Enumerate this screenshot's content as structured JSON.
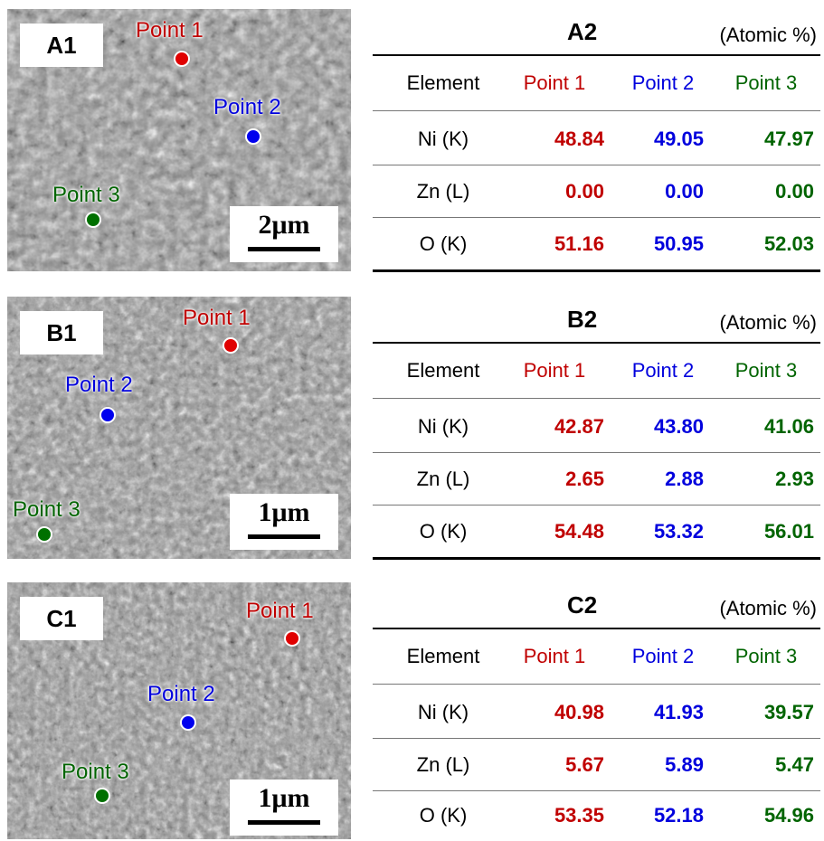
{
  "colors": {
    "point1": "#c00000",
    "point2": "#0000dd",
    "point3": "#006400"
  },
  "panels": [
    {
      "image_label": "A1",
      "scale": "2μm",
      "point_labels": [
        "Point 1",
        "Point 2",
        "Point 3"
      ],
      "table": {
        "title": "A2",
        "unit": "(Atomic %)",
        "headers": [
          "Element",
          "Point 1",
          "Point 2",
          "Point 3"
        ],
        "rows": [
          [
            "Ni (K)",
            "48.84",
            "49.05",
            "47.97"
          ],
          [
            "Zn (L)",
            "0.00",
            "0.00",
            "0.00"
          ],
          [
            "O (K)",
            "51.16",
            "50.95",
            "52.03"
          ]
        ]
      }
    },
    {
      "image_label": "B1",
      "scale": "1μm",
      "point_labels": [
        "Point 1",
        "Point 2",
        "Point 3"
      ],
      "table": {
        "title": "B2",
        "unit": "(Atomic %)",
        "headers": [
          "Element",
          "Point 1",
          "Point 2",
          "Point 3"
        ],
        "rows": [
          [
            "Ni (K)",
            "42.87",
            "43.80",
            "41.06"
          ],
          [
            "Zn (L)",
            "2.65",
            "2.88",
            "2.93"
          ],
          [
            "O (K)",
            "54.48",
            "53.32",
            "56.01"
          ]
        ]
      }
    },
    {
      "image_label": "C1",
      "scale": "1μm",
      "point_labels": [
        "Point 1",
        "Point 2",
        "Point 3"
      ],
      "table": {
        "title": "C2",
        "unit": "(Atomic %)",
        "headers": [
          "Element",
          "Point 1",
          "Point 2",
          "Point 3"
        ],
        "rows": [
          [
            "Ni (K)",
            "40.98",
            "41.93",
            "39.57"
          ],
          [
            "Zn (L)",
            "5.67",
            "5.89",
            "5.47"
          ],
          [
            "O (K)",
            "53.35",
            "52.18",
            "54.96"
          ]
        ]
      }
    }
  ]
}
